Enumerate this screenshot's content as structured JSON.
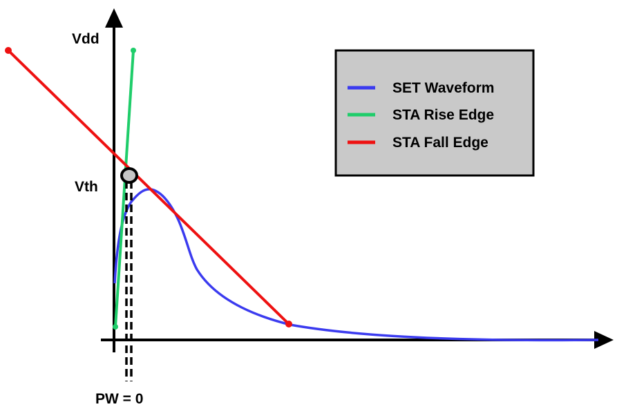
{
  "labels": {
    "vdd": "Vdd",
    "vth": "Vth",
    "pw": "PW = 0"
  },
  "legend": {
    "items": [
      {
        "label": "SET Waveform",
        "color": "#3b3bef"
      },
      {
        "label": "STA Rise Edge",
        "color": "#1fcd6a"
      },
      {
        "label": "STA Fall Edge",
        "color": "#ee1111"
      }
    ]
  },
  "colors": {
    "axis": "#000000",
    "legend_background": "#c9c9c9",
    "crossing_marker_fill": "#c6c6c6",
    "pw_marker_line": "#000000"
  }
}
